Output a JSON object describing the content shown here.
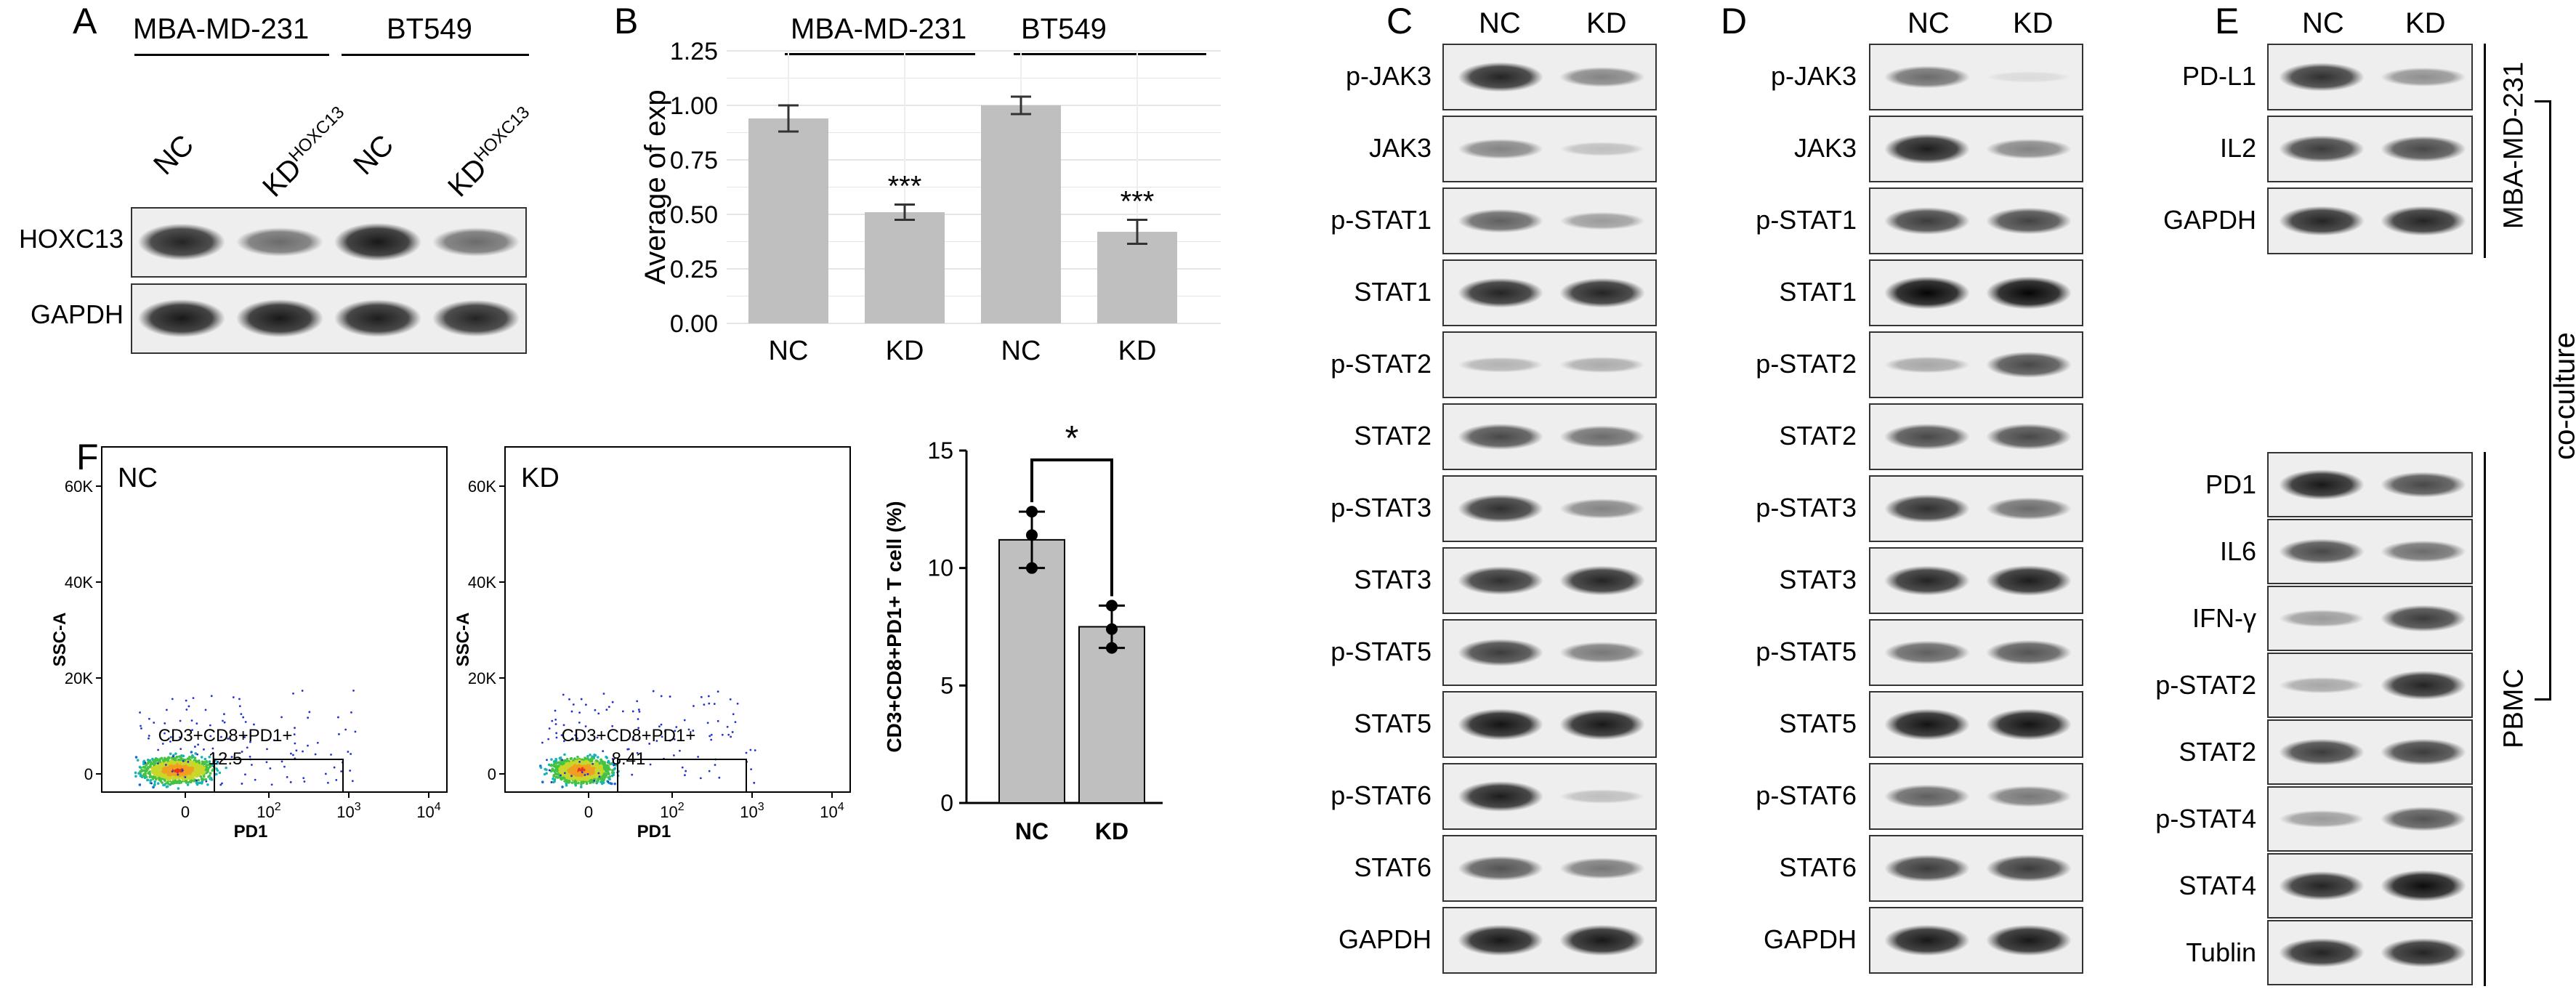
{
  "panel_letters": [
    "A",
    "B",
    "C",
    "D",
    "E",
    "F"
  ],
  "panelA": {
    "cell_lines": [
      "MBA-MD-231",
      "BT549"
    ],
    "lane_main": [
      "NC",
      "KD",
      "NC",
      "KD"
    ],
    "lane_sup": [
      "",
      "HOXC13",
      "",
      "HOXC13"
    ],
    "rows": [
      "HOXC13",
      "GAPDH"
    ]
  },
  "panelB": {
    "cell_lines": [
      "MBA-MD-231",
      "BT549"
    ],
    "ylabel": "Average of exp",
    "yticks": [
      "1.25",
      "1.00",
      "0.75",
      "0.50",
      "0.25",
      "0.00"
    ],
    "sig": [
      "***",
      "***"
    ]
  },
  "panelC": {
    "lanes": [
      "NC",
      "KD"
    ],
    "rows": [
      "p-JAK3",
      "JAK3",
      "p-STAT1",
      "STAT1",
      "p-STAT2",
      "STAT2",
      "p-STAT3",
      "STAT3",
      "p-STAT5",
      "STAT5",
      "p-STAT6",
      "STAT6",
      "GAPDH"
    ]
  },
  "panelD": {
    "lanes": [
      "NC",
      "KD"
    ],
    "rows": [
      "p-JAK3",
      "JAK3",
      "p-STAT1",
      "STAT1",
      "p-STAT2",
      "STAT2",
      "p-STAT3",
      "STAT3",
      "p-STAT5",
      "STAT5",
      "p-STAT6",
      "STAT6",
      "GAPDH"
    ]
  },
  "panelE": {
    "lanes": [
      "NC",
      "KD"
    ],
    "top_rows": [
      "PD-L1",
      "IL2",
      "GAPDH"
    ],
    "bottom_rows": [
      "PD1",
      "IL6",
      "IFN-γ",
      "p-STAT2",
      "STAT2",
      "p-STAT4",
      "STAT4",
      "Tublin"
    ],
    "bracket_top": "MBA-MD-231",
    "bracket_bottom": "PBMC",
    "bracket_outer": "co-culture"
  },
  "panelF": {
    "flow_NC": {
      "title": "NC",
      "gate_label": "CD3+CD8+PD1+",
      "gate_value": "12.5"
    },
    "flow_KD": {
      "title": "KD",
      "gate_label": "CD3+CD8+PD1+",
      "gate_value": "8.41"
    },
    "flow_xlabel": "PD1",
    "flow_ylabel": "SSC-A",
    "flow_yticks": [
      "60K",
      "40K",
      "20K",
      "0"
    ],
    "flow_xticks": [
      "0",
      "10",
      "10",
      "10"
    ],
    "flow_xtick_exp": [
      "",
      "2",
      "3",
      "4"
    ],
    "bar_ylabel": "CD3+CD8+PD1+ T cell (%)",
    "bar_yticks": [
      "15",
      "10",
      "5",
      "0"
    ],
    "bar_sig": "*"
  },
  "chart_data": [
    {
      "type": "bar",
      "categories": [
        "NC",
        "KD",
        "NC",
        "KD"
      ],
      "groups": [
        "MBA-MD-231",
        "MBA-MD-231",
        "BT549",
        "BT549"
      ],
      "values": [
        0.94,
        0.51,
        1.0,
        0.42
      ],
      "errors": [
        0.06,
        0.035,
        0.04,
        0.055
      ],
      "ylabel": "Average of exp",
      "ylim": [
        0,
        1.25
      ],
      "grid": true,
      "bar_color": "#bfbfbf"
    },
    {
      "type": "bar",
      "categories": [
        "NC",
        "KD"
      ],
      "values": [
        11.2,
        7.5
      ],
      "errors": [
        1.2,
        0.9
      ],
      "points": [
        [
          12.4,
          11.4,
          10.0
        ],
        [
          8.4,
          7.4,
          6.6
        ]
      ],
      "ylabel": "CD3+CD8+PD1+ T cell (%)",
      "ylim": [
        0,
        15
      ],
      "grid": false,
      "bar_color": "#bfbfbf"
    }
  ],
  "blots": {
    "A": [
      [
        0.85,
        0.55,
        0.9,
        0.55
      ],
      [
        0.9,
        0.9,
        0.88,
        0.85
      ]
    ],
    "C": [
      [
        0.85,
        0.45
      ],
      [
        0.45,
        0.2
      ],
      [
        0.6,
        0.35
      ],
      [
        0.85,
        0.85
      ],
      [
        0.25,
        0.28
      ],
      [
        0.7,
        0.55
      ],
      [
        0.8,
        0.45
      ],
      [
        0.8,
        0.85
      ],
      [
        0.75,
        0.5
      ],
      [
        0.92,
        0.9
      ],
      [
        0.88,
        0.2
      ],
      [
        0.65,
        0.5
      ],
      [
        0.9,
        0.9
      ]
    ],
    "D": [
      [
        0.55,
        0.08
      ],
      [
        0.88,
        0.45
      ],
      [
        0.75,
        0.72
      ],
      [
        0.98,
        0.98
      ],
      [
        0.3,
        0.7
      ],
      [
        0.7,
        0.7
      ],
      [
        0.8,
        0.55
      ],
      [
        0.85,
        0.88
      ],
      [
        0.6,
        0.65
      ],
      [
        0.92,
        0.92
      ],
      [
        0.6,
        0.5
      ],
      [
        0.75,
        0.75
      ],
      [
        0.9,
        0.9
      ]
    ],
    "E_top": [
      [
        0.8,
        0.4
      ],
      [
        0.75,
        0.7
      ],
      [
        0.85,
        0.85
      ]
    ],
    "E_bottom": [
      [
        0.9,
        0.7
      ],
      [
        0.7,
        0.55
      ],
      [
        0.35,
        0.75
      ],
      [
        0.3,
        0.85
      ],
      [
        0.75,
        0.75
      ],
      [
        0.35,
        0.65
      ],
      [
        0.85,
        0.95
      ],
      [
        0.85,
        0.85
      ]
    ]
  }
}
